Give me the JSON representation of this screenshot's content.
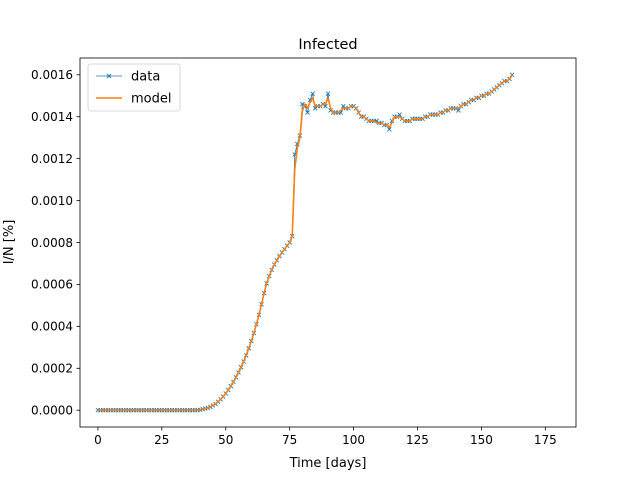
{
  "chart_data": {
    "type": "line",
    "title": "Infected",
    "xlabel": "Time [days]",
    "ylabel": "I/N [%]",
    "xlim": [
      -7,
      187
    ],
    "ylim": [
      -8e-05,
      0.00168
    ],
    "xticks": [
      0,
      25,
      50,
      75,
      100,
      125,
      150,
      175
    ],
    "xtick_labels": [
      "0",
      "25",
      "50",
      "75",
      "100",
      "125",
      "150",
      "175"
    ],
    "yticks": [
      0.0,
      0.0002,
      0.0004,
      0.0006,
      0.0008,
      0.001,
      0.0012,
      0.0014,
      0.0016
    ],
    "ytick_labels": [
      "0.0000",
      "0.0002",
      "0.0004",
      "0.0006",
      "0.0008",
      "0.0010",
      "0.0012",
      "0.0014",
      "0.0016"
    ],
    "grid": false,
    "legend_position": "top-left",
    "x_start": 0,
    "x_step": 1,
    "series": [
      {
        "name": "data",
        "color": "#1f77b4",
        "marker": "x",
        "values": [
          0,
          0,
          0,
          0,
          0,
          0,
          0,
          0,
          0,
          0,
          0,
          0,
          0,
          0,
          0,
          0,
          0,
          0,
          0,
          0,
          0,
          0,
          0,
          0,
          0,
          0,
          0,
          0,
          0,
          0,
          0,
          0,
          0,
          0,
          0,
          0,
          0,
          0,
          0,
          0,
          2e-06,
          5e-06,
          8e-06,
          1.1e-05,
          1.6e-05,
          2.3e-05,
          3e-05,
          4e-05,
          5.2e-05,
          6.5e-05,
          8e-05,
          9.7e-05,
          0.000115,
          0.000135,
          0.000157,
          0.00018,
          0.000205,
          0.000232,
          0.000262,
          0.000295,
          0.00033,
          0.000368,
          0.00041,
          0.000455,
          0.000505,
          0.000558,
          0.000605,
          0.00064,
          0.00067,
          0.000695,
          0.000715,
          0.000735,
          0.000752,
          0.000768,
          0.000785,
          0.0008,
          0.00083,
          0.00122,
          0.00127,
          0.00131,
          0.00146,
          0.00145,
          0.00142,
          0.00148,
          0.00151,
          0.00144,
          0.00145,
          0.00145,
          0.00146,
          0.00145,
          0.00151,
          0.00143,
          0.00142,
          0.00142,
          0.00142,
          0.00142,
          0.00145,
          0.00144,
          0.00144,
          0.00145,
          0.00145,
          0.00144,
          0.00142,
          0.0014,
          0.0014,
          0.00139,
          0.00138,
          0.00138,
          0.00138,
          0.00138,
          0.00137,
          0.00137,
          0.00136,
          0.00136,
          0.00134,
          0.00138,
          0.0014,
          0.0014,
          0.00141,
          0.00139,
          0.00138,
          0.00138,
          0.00138,
          0.00139,
          0.00139,
          0.00139,
          0.00139,
          0.00139,
          0.0014,
          0.0014,
          0.00141,
          0.00141,
          0.00141,
          0.00141,
          0.00142,
          0.00142,
          0.00143,
          0.00143,
          0.00144,
          0.00144,
          0.00144,
          0.00143,
          0.00145,
          0.00146,
          0.00146,
          0.00147,
          0.00148,
          0.00148,
          0.00149,
          0.00149,
          0.0015,
          0.0015,
          0.00151,
          0.00151,
          0.00152,
          0.00153,
          0.00154,
          0.00155,
          0.00156,
          0.00157,
          0.00157,
          0.00158,
          0.0016
        ]
      },
      {
        "name": "model",
        "color": "#ff7f0e",
        "marker": "none",
        "values": [
          0,
          0,
          0,
          0,
          0,
          0,
          0,
          0,
          0,
          0,
          0,
          0,
          0,
          0,
          0,
          0,
          0,
          0,
          0,
          0,
          0,
          0,
          0,
          0,
          0,
          0,
          0,
          0,
          0,
          0,
          0,
          0,
          0,
          0,
          0,
          0,
          0,
          0,
          0,
          0,
          2e-06,
          5e-06,
          8e-06,
          1.1e-05,
          1.6e-05,
          2.3e-05,
          3e-05,
          4e-05,
          5.2e-05,
          6.5e-05,
          8e-05,
          9.7e-05,
          0.000115,
          0.000135,
          0.000157,
          0.00018,
          0.000205,
          0.000232,
          0.000262,
          0.000295,
          0.00033,
          0.000368,
          0.00041,
          0.000455,
          0.000505,
          0.000558,
          0.000605,
          0.00064,
          0.00067,
          0.000695,
          0.000715,
          0.000735,
          0.000752,
          0.000768,
          0.000785,
          0.0008,
          0.00083,
          0.00115,
          0.00125,
          0.0013,
          0.00143,
          0.00146,
          0.00144,
          0.00147,
          0.00149,
          0.00145,
          0.00145,
          0.00145,
          0.00146,
          0.00146,
          0.00149,
          0.00144,
          0.00142,
          0.00142,
          0.00142,
          0.00143,
          0.00144,
          0.00144,
          0.00144,
          0.00145,
          0.00145,
          0.00144,
          0.00142,
          0.0014,
          0.0014,
          0.00139,
          0.00138,
          0.00138,
          0.00138,
          0.00137,
          0.00137,
          0.00137,
          0.00136,
          0.00136,
          0.00135,
          0.00137,
          0.0014,
          0.0014,
          0.0014,
          0.00139,
          0.00138,
          0.00138,
          0.00138,
          0.00139,
          0.00139,
          0.00139,
          0.00139,
          0.00139,
          0.0014,
          0.0014,
          0.00141,
          0.00141,
          0.00141,
          0.00141,
          0.00142,
          0.00142,
          0.00143,
          0.00143,
          0.00144,
          0.00144,
          0.00144,
          0.00144,
          0.00145,
          0.00146,
          0.00146,
          0.00147,
          0.00148,
          0.00148,
          0.00149,
          0.00149,
          0.0015,
          0.0015,
          0.00151,
          0.00151,
          0.00152,
          0.00153,
          0.00154,
          0.00155,
          0.00156,
          0.00157,
          0.00157,
          0.00158,
          0.0016
        ]
      }
    ]
  }
}
